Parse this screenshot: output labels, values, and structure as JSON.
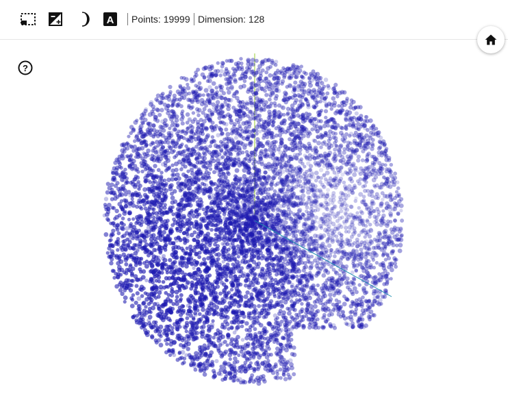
{
  "toolbar": {
    "icons": [
      "selection-icon",
      "exposure-icon",
      "night-mode-icon",
      "label-toggle-icon"
    ],
    "label_icon_text": "A",
    "points": "Points: 19999",
    "dimension": "Dimension: 128"
  },
  "floating": {
    "home_icon": "home-icon",
    "help_icon": "help-icon",
    "help_text": "?"
  },
  "colors": {
    "point": "#1e1ab0",
    "axis_y": "#9acd32",
    "axis_z": "#1e8fb0"
  },
  "scatter": {
    "type": "3d-scatter",
    "point_count": 19999,
    "dimension": 128
  }
}
